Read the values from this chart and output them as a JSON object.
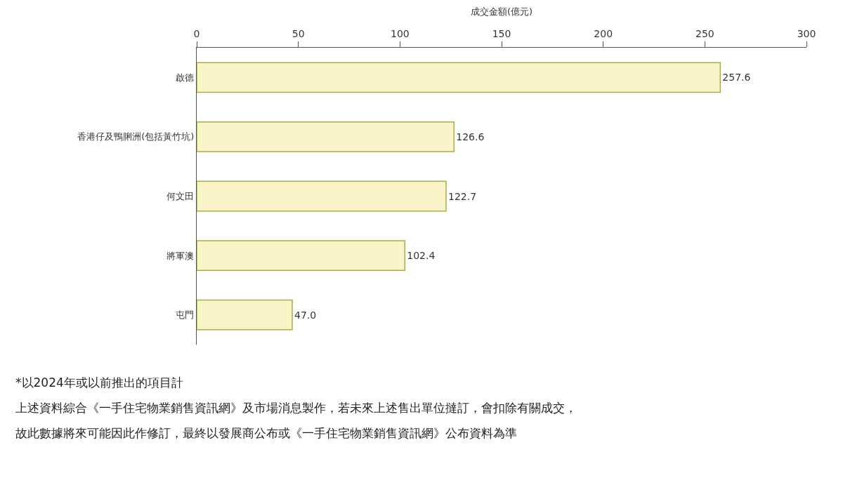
{
  "chart_data": {
    "type": "bar",
    "orientation": "horizontal",
    "xlabel": "成交金額(億元)",
    "categories": [
      "啟德",
      "香港仔及鴨脷洲(包括黃竹坑)",
      "何文田",
      "將軍澳",
      "屯門"
    ],
    "values": [
      257.6,
      126.6,
      122.7,
      102.4,
      47.0
    ],
    "value_labels": [
      "257.6",
      "126.6",
      "122.7",
      "102.4",
      "47.0"
    ],
    "color": "#f8f4c8",
    "xlim": [
      0,
      300
    ],
    "xticks": [
      0,
      50,
      100,
      150,
      200,
      250,
      300
    ],
    "annotations": [
      "*以2024年或以前推出的項目計",
      "上述資料綜合《一手住宅物業銷售資訊網》及市場消息製作，若未來上述售出單位撻訂，會扣除有關成交，",
      "故此數據將來可能因此作修訂，最終以發展商公布或《一手住宅物業銷售資訊網》公布資料為準"
    ]
  }
}
